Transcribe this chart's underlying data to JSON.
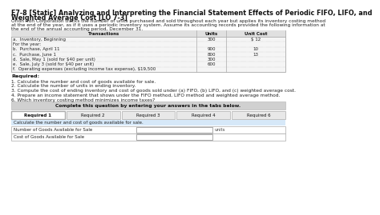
{
  "title_line1": "E7-8 [Static] Analyzing and Interpreting the Financial Statement Effects of Periodic FIFO, LIFO, and",
  "title_line2": "Weighted Average Cost [LO 7-3]",
  "body_lines": [
    "Orion Iron Corporation tracks the number of units purchased and sold throughout each year but applies its inventory costing method",
    "at the end of the year, as if it uses a periodic inventory system. Assume its accounting records provided the following information at",
    "the end of the annual accounting period, December 31."
  ],
  "table_header": [
    "Transactions",
    "Units",
    "Unit Cost"
  ],
  "table_rows": [
    [
      "a.  Inventory, Beginning",
      "300",
      "$ 12"
    ],
    [
      "For the year:",
      "",
      ""
    ],
    [
      "b.  Purchase, April 11",
      "900",
      "10"
    ],
    [
      "c.  Purchase, June 1",
      "800",
      "13"
    ],
    [
      "d.  Sale, May 1 (sold for $40 per unit)",
      "300",
      ""
    ],
    [
      "e.  Sale, July 3 (sold for $40 per unit)",
      "600",
      ""
    ],
    [
      "f.  Operating expenses (excluding income tax expense), $19,500",
      "",
      ""
    ]
  ],
  "required_title": "Required:",
  "required_items": [
    "1. Calculate the number and cost of goods available for sale.",
    "2. Calculate the number of units in ending inventory.",
    "3. Compute the cost of ending inventory and cost of goods sold under (a) FIFO, (b) LIFO, and (c) weighted average cost.",
    "4. Prepare an income statement that shows under the FIFO method, LIFO method and weighted average method.",
    "6. Which inventory costing method minimizes income taxes?"
  ],
  "complete_box_text": "Complete this question by entering your answers in the tabs below.",
  "tabs": [
    "Required 1",
    "Required 2",
    "Required 3",
    "Required 4",
    "Required 6"
  ],
  "active_tab": "Required 1",
  "tab_instruction": "Calculate the number and cost of goods available for sale.",
  "form_rows": [
    [
      "Number of Goods Available for Sale",
      "units"
    ],
    [
      "Cost of Goods Available for Sale",
      ""
    ]
  ],
  "bg_color": "#ffffff",
  "table_header_bg": "#e0e0e0",
  "table_body_bg": "#f5f5f5",
  "table_border": "#aaaaaa",
  "complete_box_bg": "#d0d0d0",
  "tab_active_bg": "#ffffff",
  "tab_inactive_bg": "#e8e8e8",
  "tab_border": "#aaaaaa",
  "tab_instruction_bg": "#d6e8f8",
  "form_border": "#aaaaaa",
  "title_fontsize": 5.8,
  "body_fontsize": 4.2,
  "table_fontsize": 4.0,
  "required_fontsize": 4.6,
  "tab_fontsize": 4.0,
  "form_fontsize": 4.0
}
